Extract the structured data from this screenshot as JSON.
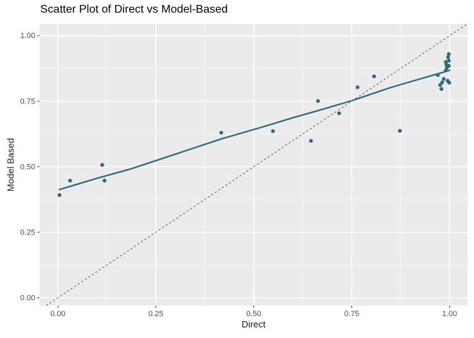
{
  "chart_data": {
    "type": "scatter",
    "title": "Scatter Plot of Direct vs Model-Based",
    "xlabel": "Direct",
    "ylabel": "Model Based",
    "x_ticks": [
      0,
      0.25,
      0.5,
      0.75,
      1
    ],
    "x_tick_labels": [
      "0.00",
      "0.25",
      "0.50",
      "0.75",
      "1.00"
    ],
    "y_ticks": [
      0,
      0.25,
      0.5,
      0.75,
      1
    ],
    "y_tick_labels": [
      "0.00",
      "0.25",
      "0.50",
      "0.75",
      "1.00"
    ],
    "xlim": [
      -0.047,
      1.046
    ],
    "ylim": [
      -0.03,
      1.045
    ],
    "grid": {
      "major": true,
      "minor": true
    },
    "legend": "none",
    "panel_bg": "#ebebeb",
    "grid_color": "#ffffff",
    "tick_label_color": "#4d4d4d",
    "point_color": "#2e6b7a",
    "points": [
      [
        0.004,
        0.392
      ],
      [
        0.031,
        0.447
      ],
      [
        0.113,
        0.507
      ],
      [
        0.119,
        0.447
      ],
      [
        0.417,
        0.63
      ],
      [
        0.549,
        0.636
      ],
      [
        0.646,
        0.599
      ],
      [
        0.664,
        0.751
      ],
      [
        0.718,
        0.704
      ],
      [
        0.765,
        0.803
      ],
      [
        0.807,
        0.845
      ],
      [
        0.873,
        0.637
      ],
      [
        0.97,
        0.85
      ],
      [
        0.976,
        0.812
      ],
      [
        0.979,
        0.797
      ],
      [
        0.981,
        0.822
      ],
      [
        0.985,
        0.835
      ],
      [
        0.99,
        0.868
      ],
      [
        0.99,
        0.9
      ],
      [
        0.992,
        0.89
      ],
      [
        0.993,
        0.878
      ],
      [
        0.995,
        0.828
      ],
      [
        0.996,
        0.918
      ],
      [
        0.998,
        0.885
      ],
      [
        0.998,
        0.905
      ],
      [
        0.998,
        0.93
      ],
      [
        0.999,
        0.821
      ]
    ],
    "smooth_line": {
      "color": "#2e6b7a",
      "width": 2.2,
      "path": [
        [
          0.004,
          0.413
        ],
        [
          0.1,
          0.456
        ],
        [
          0.185,
          0.491
        ],
        [
          0.3,
          0.548
        ],
        [
          0.417,
          0.606
        ],
        [
          0.518,
          0.65
        ],
        [
          0.6,
          0.687
        ],
        [
          0.675,
          0.719
        ],
        [
          0.75,
          0.752
        ],
        [
          0.851,
          0.803
        ],
        [
          0.938,
          0.841
        ],
        [
          1.0,
          0.868
        ]
      ]
    },
    "identity_line": {
      "slope": 1,
      "intercept": 0,
      "style": "dashed",
      "color": "#4d4d4d",
      "width": 0.9
    }
  }
}
